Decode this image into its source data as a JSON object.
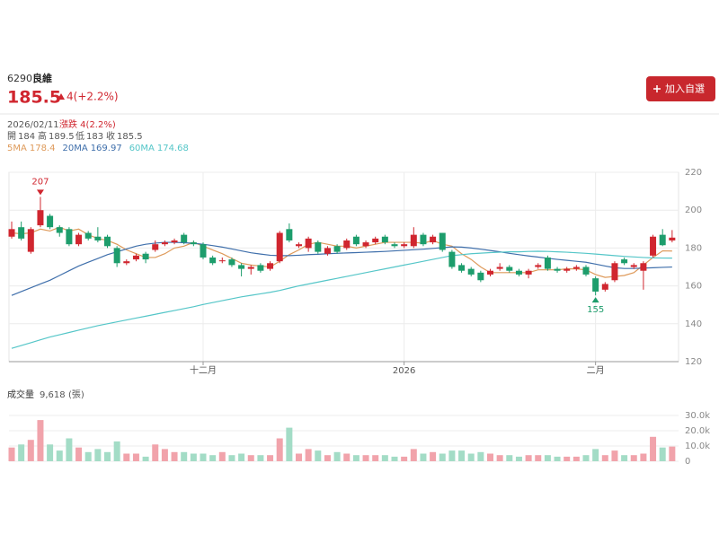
{
  "stock": {
    "code": "6290",
    "name": "良維",
    "change": "4(+2.2%)",
    "button": "加入自選"
  },
  "info": {
    "date": "2026/02/11",
    "change": "漲跌 4(2.2%)",
    "open_label": "開",
    "high_label": "高",
    "low_label": "低",
    "close_label": "收"
  },
  "chart_data": [
    {
      "type": "candlestick",
      "categories": [
        null,
        null,
        null,
        null,
        null,
        null,
        null,
        null,
        null,
        null,
        null,
        null,
        null,
        null,
        null,
        null,
        null,
        null,
        null,
        null,
        "十二月",
        null,
        null,
        null,
        null,
        null,
        null,
        null,
        null,
        null,
        null,
        null,
        null,
        null,
        null,
        null,
        null,
        null,
        null,
        null,
        null,
        "2026",
        null,
        null,
        null,
        null,
        null,
        null,
        null,
        null,
        null,
        null,
        null,
        null,
        null,
        null,
        null,
        null,
        null,
        null,
        null,
        "二月",
        null,
        null,
        null,
        null,
        null,
        null,
        null,
        null
      ],
      "open": [
        186,
        191,
        178,
        192,
        197,
        191,
        190,
        182,
        188,
        186,
        186,
        180,
        172,
        174,
        177,
        179,
        182,
        183,
        187,
        183,
        182,
        175,
        173,
        174,
        171,
        169,
        171,
        169,
        173,
        190,
        181,
        180,
        183,
        177,
        181,
        180,
        186,
        181,
        183,
        186,
        182,
        181,
        181,
        187,
        183,
        188,
        178,
        171,
        169,
        167,
        166,
        169,
        170,
        168,
        166,
        170,
        175,
        169,
        168,
        169,
        170,
        164,
        158,
        163,
        174,
        170,
        168,
        176,
        187,
        184
      ],
      "high": [
        194,
        194,
        191,
        207,
        198,
        192,
        191,
        188,
        189,
        191,
        187,
        181,
        174,
        177,
        178,
        184,
        184,
        185,
        188,
        184,
        183,
        176,
        175,
        175,
        172,
        171,
        172,
        173,
        189,
        193,
        183,
        186,
        184,
        181,
        182,
        185,
        187,
        184,
        186,
        187,
        183,
        183,
        191,
        188,
        187,
        188,
        179,
        172,
        170,
        168,
        169,
        172,
        171,
        169,
        169,
        172,
        176,
        170,
        170,
        171,
        171,
        165,
        162,
        173,
        175,
        172,
        173,
        187,
        190,
        189.5
      ],
      "low": [
        185,
        184,
        177,
        191,
        190,
        186,
        181,
        181,
        184,
        183,
        180,
        170,
        171,
        173,
        172,
        178,
        181,
        182,
        182,
        181,
        174,
        171,
        172,
        170,
        165,
        166,
        167,
        168,
        172,
        183,
        180,
        178,
        177,
        176,
        177,
        179,
        181,
        180,
        182,
        182,
        180,
        180,
        180,
        181,
        182,
        178,
        169,
        167,
        165,
        162,
        165,
        168,
        167,
        165,
        164,
        169,
        168,
        167,
        167,
        168,
        165,
        155,
        157,
        162,
        171,
        169,
        158,
        175,
        181,
        183
      ],
      "close": [
        190,
        185,
        190,
        200,
        191,
        188,
        182,
        187,
        185,
        184,
        181,
        172,
        173,
        176,
        174,
        182,
        183,
        184,
        183,
        182,
        175,
        172,
        173.5,
        171,
        169,
        170,
        168,
        172,
        188,
        184,
        182,
        185,
        178,
        180,
        178,
        184,
        182,
        183,
        185,
        183,
        181,
        182,
        187,
        182,
        186,
        179,
        170,
        168,
        166,
        163,
        168,
        170,
        168,
        166,
        168,
        171,
        169,
        168,
        169,
        170,
        166,
        157,
        161,
        172,
        172,
        171,
        172,
        186,
        181.5,
        185.5
      ],
      "up_color": "#d0262f",
      "down_color": "#1d9d6c",
      "ylim": [
        120,
        220
      ],
      "yticks": [
        120,
        140,
        160,
        180,
        200,
        220
      ],
      "grid": true,
      "series": [
        {
          "name": "5MA",
          "color": "#de9a5a",
          "values": [
            188,
            187.5,
            188,
            190,
            189,
            191,
            189,
            190,
            187,
            185,
            184,
            182,
            179,
            177,
            175,
            175,
            177,
            180,
            181,
            183,
            181,
            179,
            177,
            174.5,
            172,
            171,
            170.5,
            170,
            173,
            176.5,
            179,
            182,
            183,
            182,
            181,
            181,
            180,
            181,
            182,
            183,
            183,
            183,
            183,
            182.5,
            184,
            182,
            181,
            177,
            174,
            170,
            167,
            167,
            167,
            167,
            167,
            168.5,
            168.5,
            168.5,
            169,
            169,
            168.5,
            166,
            164.5,
            165,
            165.5,
            167,
            171,
            175,
            178.5,
            178.4
          ]
        },
        {
          "name": "20MA",
          "color": "#3f6fab",
          "values": [
            155,
            157,
            159,
            161,
            163,
            165.5,
            168,
            170.5,
            172.5,
            174.5,
            176.5,
            178,
            179.5,
            181,
            182,
            182.6,
            183,
            183,
            182.8,
            182.5,
            182,
            181.3,
            180.5,
            179.5,
            178.5,
            177.5,
            176.8,
            176.2,
            176,
            176,
            176.2,
            176.5,
            176.7,
            177,
            177.2,
            177.4,
            177.6,
            177.8,
            178,
            178.2,
            178.5,
            178.8,
            179.1,
            179.4,
            179.8,
            180.2,
            180.6,
            180.5,
            180,
            179.4,
            178.7,
            178,
            177.2,
            176.5,
            175.8,
            175.2,
            174.6,
            174,
            173.5,
            173,
            172.5,
            171.5,
            170.5,
            169.6,
            169.2,
            169.2,
            169.4,
            169.6,
            169.8,
            169.97
          ]
        },
        {
          "name": "60MA",
          "color": "#55c6c8",
          "values": [
            127,
            128.5,
            130,
            131.5,
            133,
            134.2,
            135.4,
            136.6,
            137.8,
            139,
            140,
            141,
            142,
            143,
            144,
            145,
            146,
            147,
            148,
            149,
            150.2,
            151.2,
            152.2,
            153.2,
            154.2,
            155,
            155.8,
            156.6,
            157.6,
            158.8,
            160,
            161,
            162,
            163,
            164,
            165,
            166,
            167,
            168,
            169,
            170,
            171,
            172,
            173,
            174,
            175,
            176,
            176.5,
            177,
            177.3,
            177.6,
            177.8,
            178,
            178,
            178.2,
            178.3,
            178.2,
            178,
            177.8,
            177.5,
            177.2,
            176.8,
            176.4,
            176,
            175.6,
            175.3,
            175,
            174.8,
            174.7,
            174.68
          ]
        }
      ]
    },
    {
      "type": "bar",
      "title": "成交量",
      "unit": "(張)",
      "values": [
        9000,
        11000,
        14000,
        27000,
        11000,
        7000,
        15000,
        9000,
        6000,
        8000,
        6000,
        13000,
        5000,
        5000,
        3000,
        11000,
        8000,
        6000,
        6000,
        5000,
        5000,
        4000,
        6000,
        4000,
        5000,
        4000,
        4000,
        4000,
        15000,
        22000,
        5000,
        8000,
        7000,
        4000,
        6000,
        5000,
        4000,
        4000,
        4000,
        4000,
        3000,
        3000,
        8000,
        5000,
        6000,
        5000,
        7000,
        7000,
        5000,
        6000,
        5000,
        4000,
        4000,
        3000,
        4000,
        4000,
        4000,
        3000,
        3000,
        3000,
        4000,
        8000,
        4000,
        7000,
        4000,
        4000,
        5000,
        16000,
        9000,
        9618
      ],
      "value_labels": [
        null,
        null,
        null,
        null,
        null,
        null,
        null,
        null,
        null,
        null,
        null,
        null,
        null,
        null,
        null,
        null,
        null,
        null,
        null,
        null,
        null,
        null,
        null,
        null,
        null,
        null,
        null,
        null,
        null,
        null,
        null,
        null,
        null,
        null,
        null,
        null,
        null,
        null,
        null,
        null,
        null,
        null,
        null,
        null,
        null,
        null,
        null,
        null,
        null,
        null,
        null,
        null,
        null,
        null,
        null,
        null,
        null,
        null,
        null,
        null,
        null,
        null,
        null,
        null,
        null,
        null,
        null,
        null,
        null,
        "9,618"
      ],
      "up_color": "#f1a3ab",
      "down_color": "#a3dcc6",
      "ylim": [
        0,
        30000
      ],
      "yticks": [
        0,
        {
          "value": 10000,
          "label": "10.0k"
        },
        {
          "value": 20000,
          "label": "20.0k"
        },
        {
          "value": 30000,
          "label": "30.0k"
        }
      ],
      "grid": true
    }
  ]
}
